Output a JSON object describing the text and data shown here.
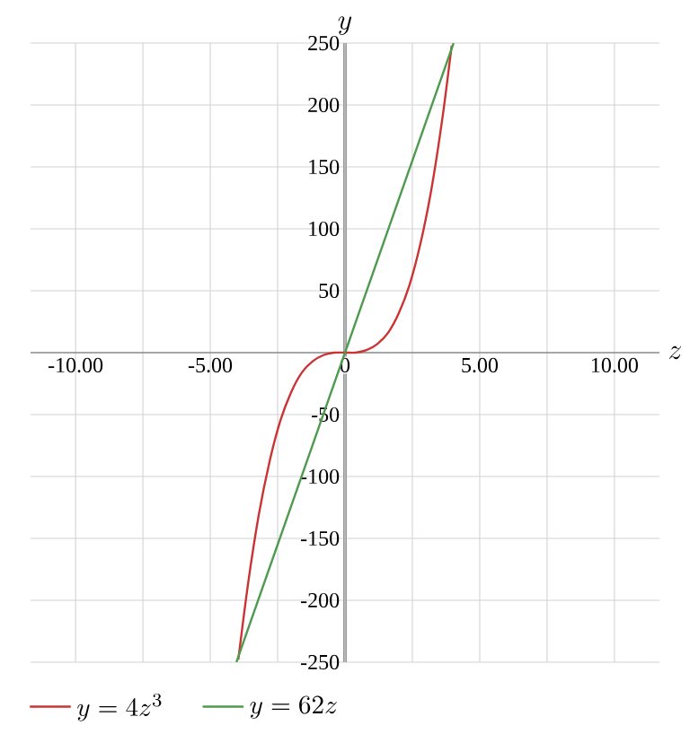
{
  "chart_data": {
    "type": "line",
    "xlabel": "z",
    "ylabel": "y",
    "xlim": [
      -11.67,
      11.67
    ],
    "ylim": [
      -250,
      250
    ],
    "xticks": [
      {
        "value": -10,
        "label": "-10.00"
      },
      {
        "value": -7.5,
        "label": null
      },
      {
        "value": -5,
        "label": "-5.00"
      },
      {
        "value": -2.5,
        "label": null
      },
      {
        "value": 0,
        "label": "0"
      },
      {
        "value": 2.5,
        "label": null
      },
      {
        "value": 5,
        "label": "5.00"
      },
      {
        "value": 7.5,
        "label": null
      },
      {
        "value": 10,
        "label": "10.00"
      }
    ],
    "yticks": [
      -250,
      -200,
      -150,
      -100,
      -50,
      {
        "value": 0,
        "label": null
      },
      50,
      100,
      150,
      200,
      250
    ],
    "grid": true,
    "legend": "bottom left",
    "marker": "none",
    "line_style": "solid",
    "series": [
      {
        "name": "y=4z^{3}",
        "color": "#cc3333",
        "x": [
          -3.96,
          -3.6,
          -3.2,
          -2.8,
          -2.4,
          -2,
          -1.6,
          -1.2,
          -0.8,
          -0.4,
          0,
          0.4,
          0.8,
          1.2,
          1.6,
          2,
          2.4,
          2.8,
          3.2,
          3.6,
          3.96
        ],
        "values": [
          -248,
          -187,
          -131,
          -88,
          -55,
          -32,
          -16,
          -7,
          -2,
          0,
          0,
          0,
          2,
          7,
          16,
          32,
          55,
          88,
          131,
          187,
          248
        ]
      },
      {
        "name": "y=62z",
        "color": "#4e9a4e",
        "x": [
          -4.03,
          4.03
        ],
        "values": [
          -250,
          250
        ]
      }
    ]
  }
}
